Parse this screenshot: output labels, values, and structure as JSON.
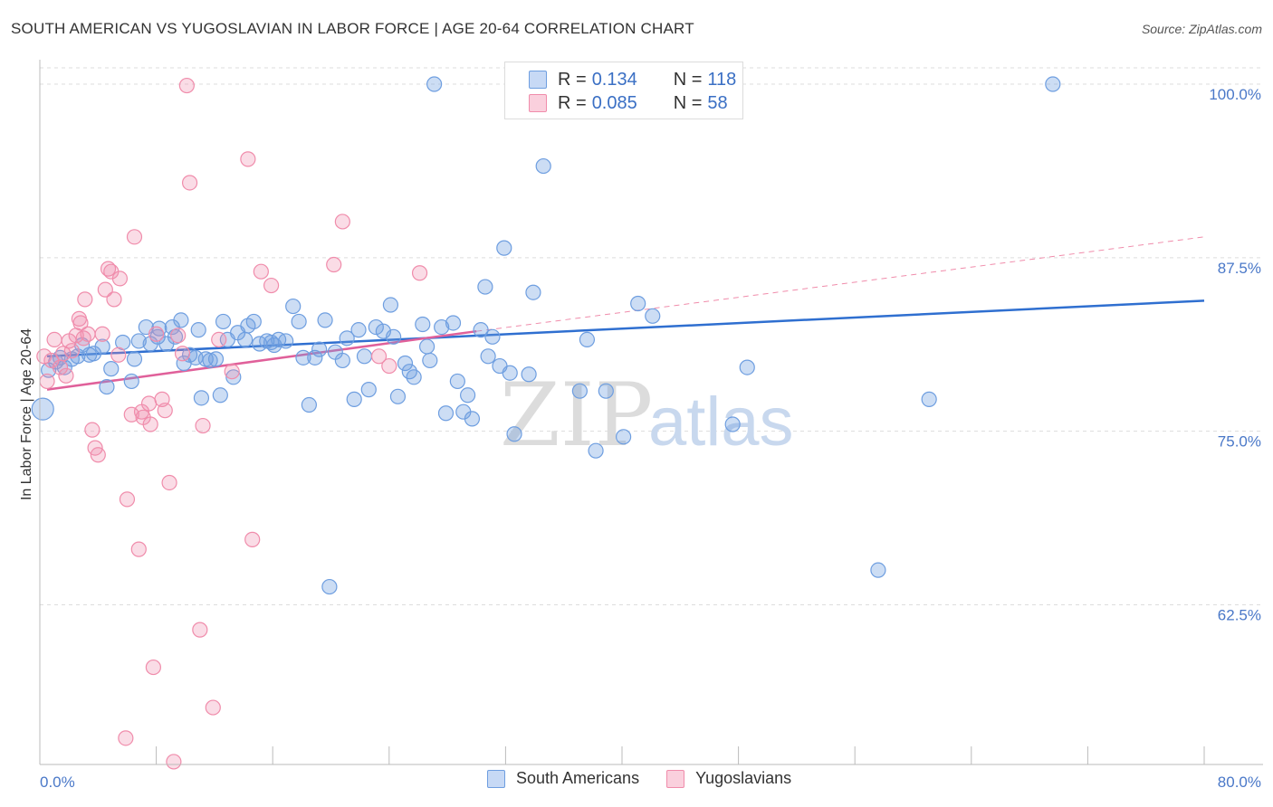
{
  "header": {
    "title": "SOUTH AMERICAN VS YUGOSLAVIAN IN LABOR FORCE | AGE 20-64 CORRELATION CHART",
    "source": "Source: ZipAtlas.com"
  },
  "legend": {
    "rows": [
      {
        "r_label": "R =",
        "r_value": "0.134",
        "n_label": "N =",
        "n_value": "118",
        "color": "#6e9ee0"
      },
      {
        "r_label": "R =",
        "r_value": "0.085",
        "n_label": "N =",
        "n_value": "58",
        "color": "#f08cab"
      }
    ]
  },
  "bottom_legend": {
    "items": [
      {
        "label": "South Americans",
        "color": "#6e9ee0"
      },
      {
        "label": "Yugoslavians",
        "color": "#f08cab"
      }
    ]
  },
  "chart_data": {
    "type": "scatter",
    "title": "SOUTH AMERICAN VS YUGOSLAVIAN IN LABOR FORCE | AGE 20-64 CORRELATION CHART",
    "ylabel": "In Labor Force | Age 20-64",
    "xlabel": "",
    "xlim": [
      0,
      80
    ],
    "ylim": [
      51,
      101.5
    ],
    "x_tick_labels": [
      "0.0%",
      "80.0%"
    ],
    "y_ticks": [
      62.5,
      75.0,
      87.5,
      100.0
    ],
    "y_tick_labels": [
      "62.5%",
      "75.0%",
      "87.5%",
      "100.0%"
    ],
    "grid": true,
    "legend_position": "top-center",
    "watermark": {
      "zip": "ZIP",
      "atlas": "atlas"
    },
    "series": [
      {
        "name": "South Americans",
        "color": "#6e9ee0",
        "trend": {
          "x": [
            0.5,
            80
          ],
          "y": [
            80.4,
            84.4
          ]
        },
        "points": [
          [
            0.2,
            76.6
          ],
          [
            0.6,
            79.4
          ],
          [
            1.1,
            80.0
          ],
          [
            1.4,
            80.3
          ],
          [
            1.7,
            79.6
          ],
          [
            2.2,
            80.2
          ],
          [
            2.6,
            80.4
          ],
          [
            2.9,
            81.2
          ],
          [
            3.4,
            80.5
          ],
          [
            3.7,
            80.6
          ],
          [
            4.3,
            81.1
          ],
          [
            4.9,
            79.5
          ],
          [
            4.6,
            78.2
          ],
          [
            5.7,
            81.4
          ],
          [
            6.3,
            78.6
          ],
          [
            6.5,
            80.2
          ],
          [
            6.8,
            81.5
          ],
          [
            7.3,
            82.5
          ],
          [
            7.6,
            81.3
          ],
          [
            8.2,
            82.4
          ],
          [
            8.1,
            81.8
          ],
          [
            8.7,
            81.3
          ],
          [
            9.1,
            82.5
          ],
          [
            9.3,
            81.8
          ],
          [
            9.7,
            83.0
          ],
          [
            9.9,
            79.9
          ],
          [
            10.3,
            80.5
          ],
          [
            10.7,
            80.3
          ],
          [
            10.9,
            82.3
          ],
          [
            11.1,
            77.4
          ],
          [
            11.4,
            80.2
          ],
          [
            11.7,
            80.1
          ],
          [
            12.1,
            80.2
          ],
          [
            12.4,
            77.6
          ],
          [
            12.6,
            82.9
          ],
          [
            12.9,
            81.6
          ],
          [
            13.3,
            78.9
          ],
          [
            13.6,
            82.1
          ],
          [
            14.1,
            81.6
          ],
          [
            14.3,
            82.6
          ],
          [
            14.7,
            82.9
          ],
          [
            15.1,
            81.3
          ],
          [
            15.6,
            81.5
          ],
          [
            15.9,
            81.4
          ],
          [
            16.1,
            81.2
          ],
          [
            16.4,
            81.6
          ],
          [
            16.9,
            81.5
          ],
          [
            17.4,
            84.0
          ],
          [
            17.8,
            82.9
          ],
          [
            18.1,
            80.3
          ],
          [
            18.5,
            76.9
          ],
          [
            18.9,
            80.3
          ],
          [
            19.2,
            80.9
          ],
          [
            19.6,
            83.0
          ],
          [
            19.9,
            63.8
          ],
          [
            20.3,
            80.7
          ],
          [
            20.8,
            80.1
          ],
          [
            21.1,
            81.7
          ],
          [
            21.6,
            77.3
          ],
          [
            21.9,
            82.3
          ],
          [
            22.3,
            80.4
          ],
          [
            22.6,
            78.0
          ],
          [
            23.1,
            82.5
          ],
          [
            23.6,
            82.2
          ],
          [
            24.1,
            84.1
          ],
          [
            24.3,
            81.8
          ],
          [
            24.6,
            77.5
          ],
          [
            25.1,
            79.9
          ],
          [
            25.4,
            79.3
          ],
          [
            25.7,
            78.9
          ],
          [
            26.3,
            82.7
          ],
          [
            26.6,
            81.1
          ],
          [
            26.8,
            80.1
          ],
          [
            27.1,
            100.0
          ],
          [
            27.6,
            82.5
          ],
          [
            27.9,
            76.3
          ],
          [
            28.4,
            82.8
          ],
          [
            28.7,
            78.6
          ],
          [
            29.1,
            76.4
          ],
          [
            29.4,
            77.6
          ],
          [
            29.7,
            75.9
          ],
          [
            30.3,
            82.3
          ],
          [
            30.6,
            85.4
          ],
          [
            30.8,
            80.4
          ],
          [
            31.1,
            81.8
          ],
          [
            31.6,
            79.7
          ],
          [
            31.9,
            88.2
          ],
          [
            32.3,
            79.2
          ],
          [
            32.6,
            74.8
          ],
          [
            33.1,
            100.0
          ],
          [
            33.6,
            79.1
          ],
          [
            33.9,
            85.0
          ],
          [
            34.6,
            94.1
          ],
          [
            35.1,
            100.0
          ],
          [
            35.9,
            100.0
          ],
          [
            37.1,
            77.9
          ],
          [
            37.6,
            81.6
          ],
          [
            38.2,
            73.6
          ],
          [
            38.9,
            77.9
          ],
          [
            40.1,
            74.6
          ],
          [
            41.1,
            84.2
          ],
          [
            42.1,
            83.3
          ],
          [
            47.6,
            75.5
          ],
          [
            48.6,
            79.6
          ],
          [
            57.6,
            65.0
          ],
          [
            61.1,
            77.3
          ],
          [
            69.6,
            100.0
          ]
        ]
      },
      {
        "name": "Yugoslavians",
        "color": "#f08cab",
        "trend": {
          "x": [
            0.5,
            30
          ],
          "y": [
            78.0,
            82.2
          ]
        },
        "trend_dashed": {
          "x": [
            30,
            80
          ],
          "y": [
            82.2,
            89.0
          ]
        },
        "points": [
          [
            0.3,
            80.4
          ],
          [
            0.5,
            78.6
          ],
          [
            0.8,
            80.1
          ],
          [
            1.0,
            81.6
          ],
          [
            1.4,
            79.6
          ],
          [
            1.6,
            80.6
          ],
          [
            1.8,
            79.0
          ],
          [
            2.0,
            81.5
          ],
          [
            2.2,
            80.8
          ],
          [
            2.5,
            81.9
          ],
          [
            2.7,
            83.1
          ],
          [
            2.8,
            82.8
          ],
          [
            3.0,
            81.7
          ],
          [
            3.1,
            84.5
          ],
          [
            3.3,
            82.0
          ],
          [
            3.6,
            75.1
          ],
          [
            3.8,
            73.8
          ],
          [
            4.0,
            73.3
          ],
          [
            4.3,
            82.0
          ],
          [
            4.5,
            85.2
          ],
          [
            4.7,
            86.7
          ],
          [
            4.9,
            86.5
          ],
          [
            5.1,
            84.5
          ],
          [
            5.4,
            80.5
          ],
          [
            5.5,
            86.0
          ],
          [
            6.0,
            70.1
          ],
          [
            6.3,
            76.2
          ],
          [
            6.5,
            89.0
          ],
          [
            6.8,
            66.5
          ],
          [
            7.0,
            76.4
          ],
          [
            7.1,
            76.0
          ],
          [
            7.5,
            77.0
          ],
          [
            7.6,
            75.5
          ],
          [
            7.8,
            58.0
          ],
          [
            8.0,
            82.0
          ],
          [
            8.4,
            77.3
          ],
          [
            8.6,
            76.5
          ],
          [
            8.9,
            71.3
          ],
          [
            9.2,
            51.2
          ],
          [
            9.5,
            81.9
          ],
          [
            9.8,
            80.6
          ],
          [
            10.1,
            99.9
          ],
          [
            10.3,
            92.9
          ],
          [
            11.0,
            60.7
          ],
          [
            11.2,
            75.4
          ],
          [
            11.9,
            55.1
          ],
          [
            12.3,
            81.6
          ],
          [
            13.2,
            79.3
          ],
          [
            14.3,
            94.6
          ],
          [
            14.6,
            67.2
          ],
          [
            15.2,
            86.5
          ],
          [
            15.9,
            85.5
          ],
          [
            20.2,
            87.0
          ],
          [
            20.8,
            90.1
          ],
          [
            23.3,
            80.4
          ],
          [
            24.0,
            79.7
          ],
          [
            26.1,
            86.4
          ],
          [
            5.9,
            52.9
          ]
        ]
      }
    ]
  }
}
